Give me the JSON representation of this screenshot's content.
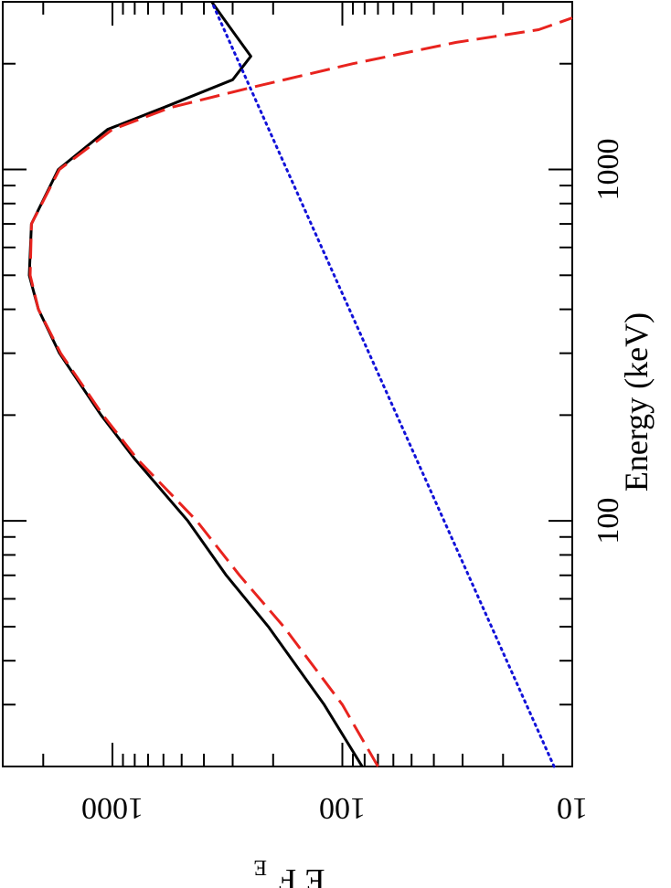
{
  "chart_data": {
    "type": "line",
    "title": "",
    "xlabel": "Energy (keV)",
    "ylabel": "E F",
    "ylabel_subscript": "E",
    "x_scale": "log",
    "y_scale": "log",
    "xlim": [
      20,
      3000
    ],
    "ylim": [
      10,
      3000
    ],
    "x_ticks": [
      {
        "value": 100,
        "label": "100"
      },
      {
        "value": 1000,
        "label": "1000"
      }
    ],
    "y_ticks": [
      {
        "value": 10,
        "label": "10"
      },
      {
        "value": 100,
        "label": "100"
      },
      {
        "value": 1000,
        "label": "1000"
      }
    ],
    "orientation": "rotated 90 degrees, x axis running vertically with energy increasing upward, y axis running horizontally with flux increasing leftward",
    "series": [
      {
        "style": "solid",
        "color": "#000000",
        "x": [
          20,
          30,
          50,
          70,
          100,
          150,
          200,
          300,
          400,
          500,
          700,
          1000,
          1300,
          1500,
          1800,
          2100,
          2400,
          2700,
          3000
        ],
        "y": [
          82,
          120,
          210,
          320,
          470,
          800,
          1120,
          1700,
          2100,
          2300,
          2250,
          1720,
          1050,
          600,
          300,
          250,
          290,
          330,
          370
        ]
      },
      {
        "style": "dashed",
        "color": "#e8231e",
        "x": [
          20,
          30,
          50,
          70,
          100,
          150,
          200,
          300,
          400,
          500,
          700,
          1000,
          1300,
          1500,
          1700,
          2000,
          2300,
          2500,
          2700
        ],
        "y": [
          70,
          100,
          180,
          280,
          430,
          780,
          1100,
          1680,
          2100,
          2280,
          2250,
          1700,
          1000,
          560,
          260,
          90,
          32,
          14,
          9
        ]
      },
      {
        "style": "dotted",
        "color": "#1212d8",
        "x": [
          20,
          3000
        ],
        "y": [
          12,
          370
        ]
      }
    ]
  }
}
